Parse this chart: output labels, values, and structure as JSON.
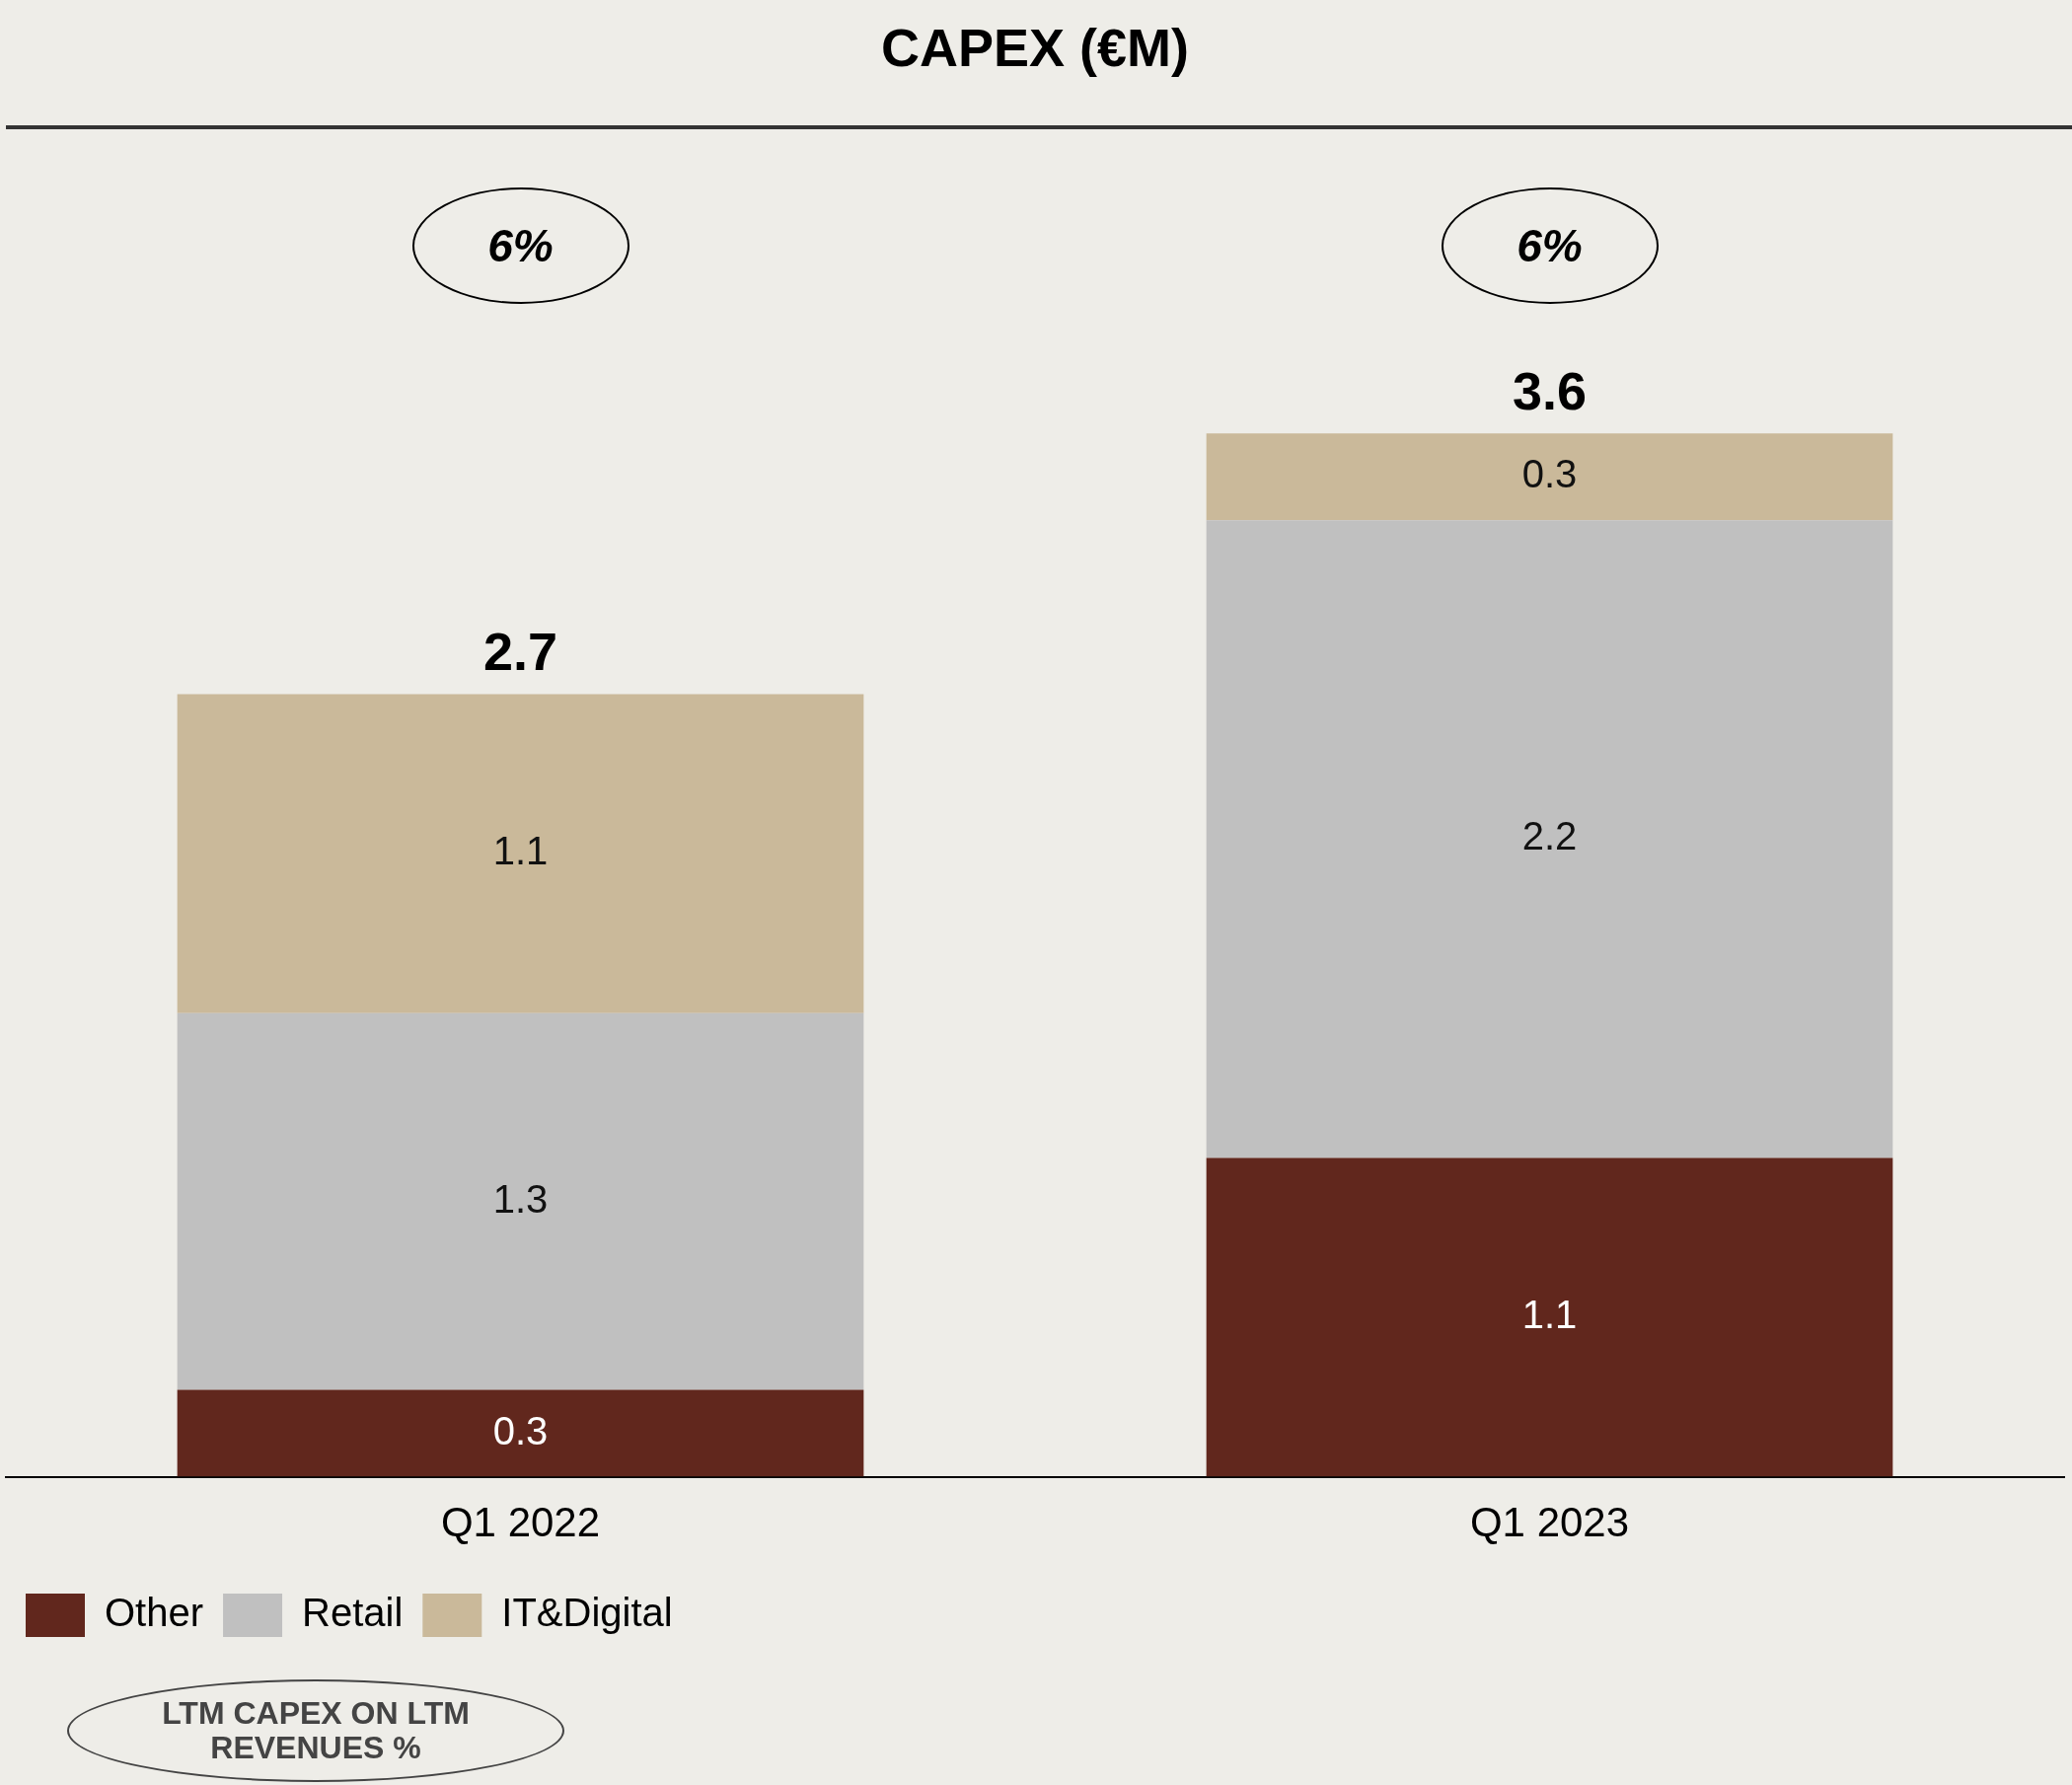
{
  "chart_data": {
    "type": "bar",
    "title": "CAPEX (€M)",
    "stacked": true,
    "categories": [
      "Q1 2022",
      "Q1 2023"
    ],
    "series": [
      {
        "name": "Other",
        "color": "#61271d",
        "values": [
          0.3,
          1.1
        ]
      },
      {
        "name": "Retail",
        "color": "#c0c0c0",
        "values": [
          1.3,
          2.2
        ]
      },
      {
        "name": "IT&Digital",
        "color": "#cab99a",
        "values": [
          1.1,
          0.3
        ]
      }
    ],
    "tick_labels": "x",
    "grid": false,
    "legend": "bottom left",
    "data_labels": true,
    "totals": [
      "2.7",
      "3.6"
    ],
    "annotations": [
      "6%",
      "6%",
      "LTM CAPEX ON LTM REVENUES %"
    ]
  }
}
